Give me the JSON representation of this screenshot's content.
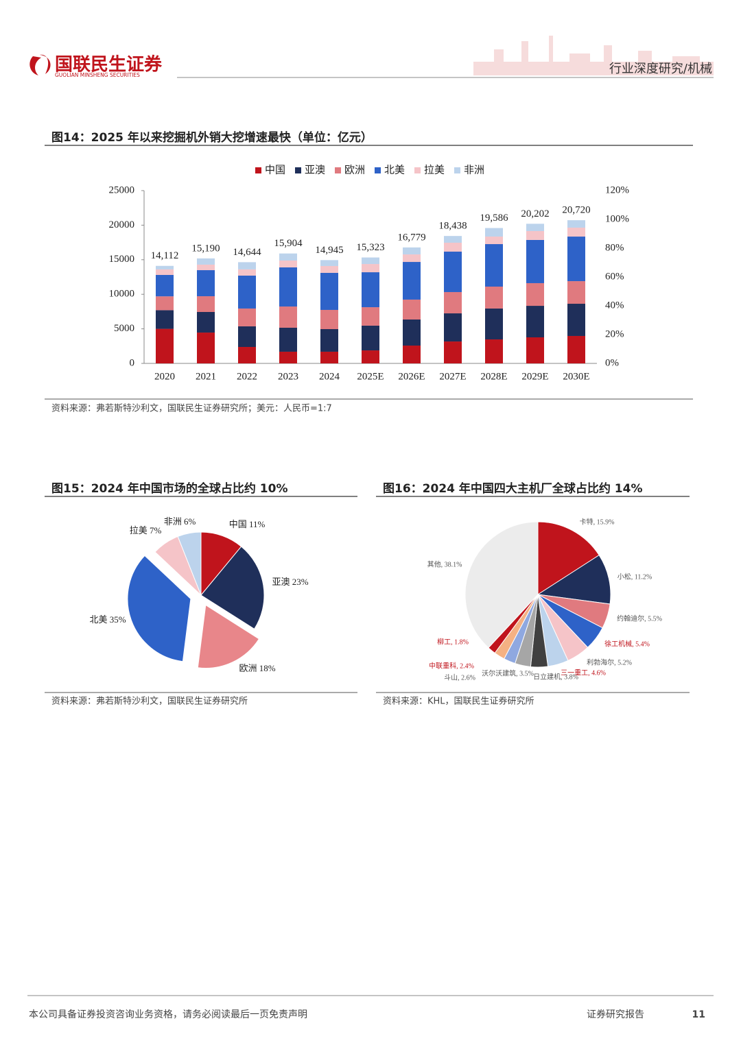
{
  "header": {
    "logo": "国联民生证券",
    "logo_en": "GUOLIAN MINSHENG SECURITIES",
    "section": "行业深度研究/机械"
  },
  "chart_data": [
    {
      "type": "stacked_bar",
      "title": "图14：2025 年以来挖掘机外销大挖增速最快（单位：亿元）",
      "categories": [
        "2020",
        "2021",
        "2022",
        "2023",
        "2024",
        "2025E",
        "2026E",
        "2027E",
        "2028E",
        "2029E",
        "2030E"
      ],
      "series": [
        {
          "name": "中国",
          "color": "#c0141c",
          "values": [
            5000,
            4460,
            2380,
            1690,
            1690,
            1880,
            2580,
            3170,
            3470,
            3770,
            3970
          ]
        },
        {
          "name": "亚澳",
          "color": "#1f2f5a",
          "values": [
            2700,
            2980,
            2980,
            3470,
            3270,
            3580,
            3770,
            4070,
            4470,
            4560,
            4660
          ]
        },
        {
          "name": "欧洲",
          "color": "#e07a7f",
          "values": [
            2000,
            2280,
            2580,
            3070,
            2780,
            2670,
            2880,
            3080,
            3170,
            3280,
            3270
          ]
        },
        {
          "name": "北美",
          "color": "#2e62c8",
          "values": [
            3100,
            3770,
            4760,
            5660,
            5360,
            5060,
            5450,
            5850,
            6150,
            6250,
            6450
          ]
        },
        {
          "name": "拉美",
          "color": "#f5c4c8",
          "values": [
            800,
            800,
            900,
            990,
            990,
            1190,
            1090,
            1290,
            1090,
            1290,
            1290
          ]
        },
        {
          "name": "非洲",
          "color": "#bcd3ec",
          "values": [
            512,
            900,
            1044,
            1024,
            855,
            943,
            1009,
            978,
            1236,
            1052,
            1080
          ]
        }
      ],
      "totals": [
        14112,
        15190,
        14644,
        15904,
        14945,
        15323,
        16779,
        18438,
        19586,
        20202,
        20720
      ],
      "total_labels": [
        "14,112",
        "15,190",
        "14,644",
        "15,904",
        "14,945",
        "15,323",
        "16,779",
        "18,438",
        "19,586",
        "20,202",
        "20,720"
      ],
      "ylim": [
        0,
        25000
      ],
      "yticks": [
        0,
        5000,
        10000,
        15000,
        20000,
        25000
      ],
      "y2lim": [
        0,
        120
      ],
      "y2ticks": [
        {
          "value": 0,
          "label": "0%"
        },
        {
          "value": 20,
          "label": "20%"
        },
        {
          "value": 40,
          "label": "40%"
        },
        {
          "value": 60,
          "label": "60%"
        },
        {
          "value": 80,
          "label": "80%"
        },
        {
          "value": 100,
          "label": "100%"
        },
        {
          "value": 120,
          "label": "120%"
        }
      ],
      "legend": "top",
      "source": "资料来源：弗若斯特沙利文，国联民生证券研究所；美元：人民币=1:7"
    },
    {
      "type": "pie",
      "title": "图15：2024 年中国市场的全球占比约 10%",
      "categories": [
        "中国",
        "亚澳",
        "欧洲",
        "北美",
        "拉美",
        "非洲"
      ],
      "values": [
        11,
        23,
        18,
        35,
        7,
        6
      ],
      "value_labels": [
        "中国 11%",
        "亚澳 23%",
        "欧洲 18%",
        "北美 35%",
        "拉美 7%",
        "非洲 6%"
      ],
      "colors": [
        "#c0141c",
        "#1f2f5a",
        "#e8868a",
        "#2e62c8",
        "#f5c4c8",
        "#bcd3ec"
      ],
      "exploded": [
        false,
        false,
        true,
        true,
        false,
        false
      ],
      "source": "资料来源：弗若斯特沙利文，国联民生证券研究所"
    },
    {
      "type": "pie",
      "title": "图16：2024 年中国四大主机厂全球占比约 14%",
      "categories": [
        "卡特",
        "小松",
        "约翰迪尔",
        "徐工机械",
        "利勃海尔",
        "三一重工",
        "日立建机",
        "沃尔沃建筑",
        "斗山",
        "中联重科",
        "柳工",
        "其他"
      ],
      "values": [
        15.9,
        11.2,
        5.5,
        5.4,
        5.2,
        4.6,
        3.8,
        3.5,
        2.6,
        2.4,
        1.8,
        38.1
      ],
      "value_labels": [
        "卡特, 15.9%",
        "小松, 11.2%",
        "约翰迪尔, 5.5%",
        "徐工机械, 5.4%",
        "利勃海尔, 5.2%",
        "三一重工, 4.6%",
        "日立建机, 3.8%",
        "沃尔沃建筑, 3.5%",
        "斗山, 2.6%",
        "中联重科, 2.4%",
        "柳工, 1.8%",
        "其他, 38.1%"
      ],
      "colors": [
        "#c0141c",
        "#1f2f5a",
        "#e07a7f",
        "#2e62c8",
        "#f5c4c8",
        "#bcd3ec",
        "#404040",
        "#a6a6a6",
        "#8fa8e0",
        "#f4b183",
        "#c0141c",
        "#ececec"
      ],
      "label_colors": [
        "#555",
        "#555",
        "#555",
        "#c0141c",
        "#555",
        "#c0141c",
        "#555",
        "#555",
        "#555",
        "#c0141c",
        "#c0141c",
        "#555"
      ],
      "source": "资料来源：KHL，国联民生证券研究所"
    }
  ],
  "footer": {
    "disclaimer": "本公司具备证券投资咨询业务资格，请务必阅读最后一页免责声明",
    "report": "证券研究报告",
    "page": "11"
  }
}
